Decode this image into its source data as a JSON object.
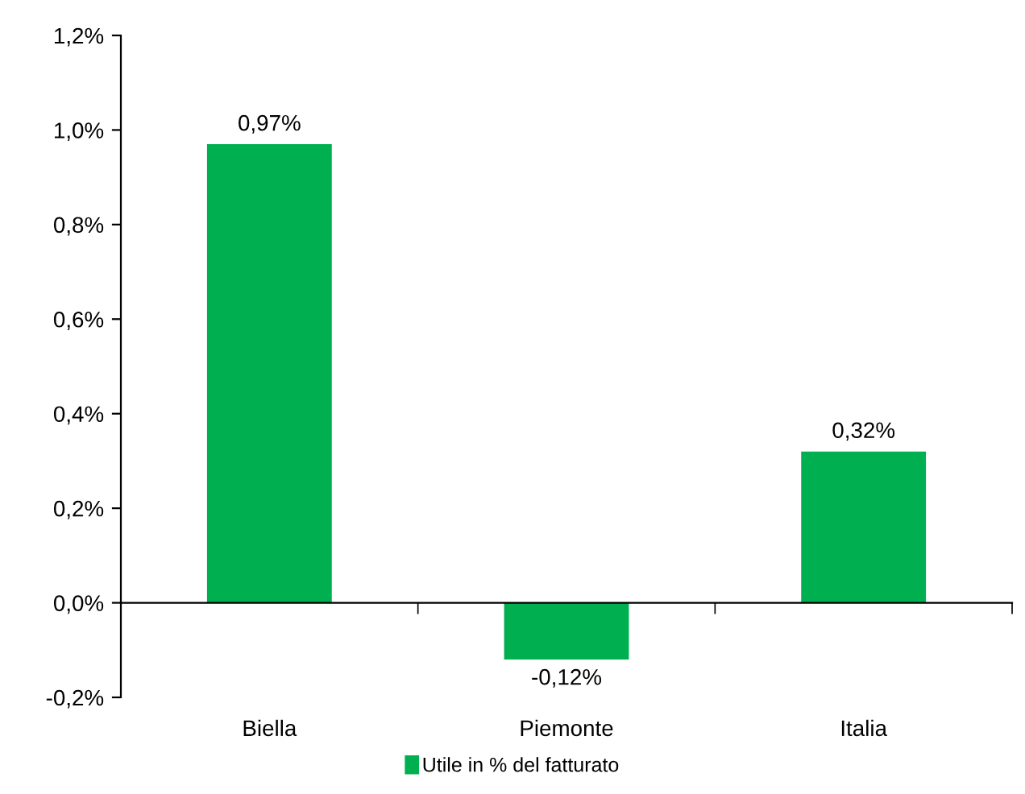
{
  "chart_data": {
    "type": "bar",
    "categories": [
      "Biella",
      "Piemonte",
      "Italia"
    ],
    "series": [
      {
        "name": "Utile in % del fatturato",
        "color": "#00b050",
        "values": [
          0.97,
          -0.12,
          0.32
        ],
        "value_labels": [
          "0,97%",
          "-0,12%",
          "0,32%"
        ]
      }
    ],
    "ylim": [
      -0.2,
      1.2
    ],
    "yticks": [
      {
        "value": -0.2,
        "label": "-0,2%"
      },
      {
        "value": 0,
        "label": "0,0%"
      },
      {
        "value": 0.2,
        "label": "0,2%"
      },
      {
        "value": 0.4,
        "label": "0,4%"
      },
      {
        "value": 0.6,
        "label": "0,6%"
      },
      {
        "value": 0.8,
        "label": "0,8%"
      },
      {
        "value": 1.0,
        "label": "1,0%"
      },
      {
        "value": 1.2,
        "label": "1,2%"
      }
    ],
    "legend": "bottom"
  }
}
